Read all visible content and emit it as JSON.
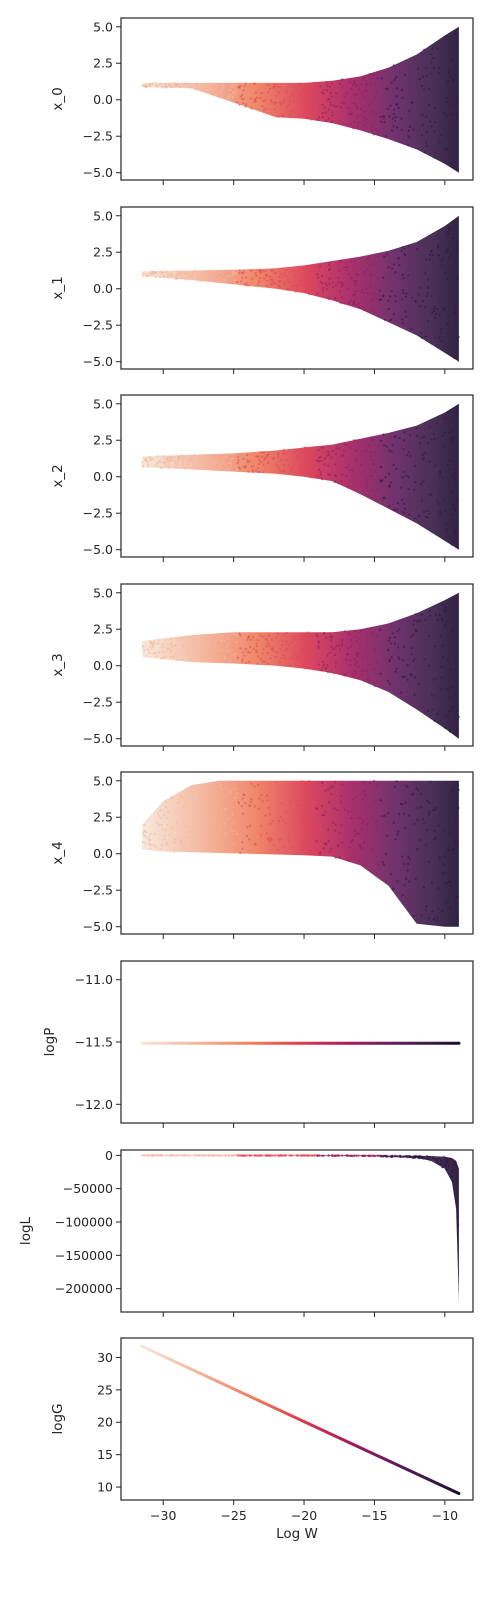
{
  "figure": {
    "shared_xlabel": "Log W",
    "colors": {
      "colormap_dark": "#1a0b2e",
      "colormap_mid": "#b8286a",
      "colormap_light": "#f6e6d6",
      "axes_edge": "#262626",
      "background": "#ffffff"
    }
  },
  "chart_data": [
    {
      "type": "scatter",
      "ylabel": "x_0",
      "xlim": [
        -33,
        -8
      ],
      "ylim": [
        -5.5,
        5.6
      ],
      "xticks": [
        -30,
        -25,
        -20,
        -15,
        -10
      ],
      "yticks": [
        5.0,
        2.5,
        0.0,
        -2.5,
        -5.0
      ],
      "ytick_labels": [
        "5.0",
        "2.5",
        "0.0",
        "−2.5",
        "−5.0"
      ],
      "show_xtick_labels": false,
      "envelope": {
        "x": [
          -31.5,
          -28,
          -25,
          -22,
          -20,
          -18,
          -16,
          -14,
          -12,
          -10,
          -9
        ],
        "upper": [
          1.15,
          1.15,
          1.15,
          1.15,
          1.15,
          1.3,
          1.6,
          2.2,
          3.1,
          4.4,
          5.0
        ],
        "lower": [
          0.85,
          0.8,
          -0.2,
          -1.2,
          -1.3,
          -1.6,
          -2.1,
          -2.7,
          -3.4,
          -4.4,
          -5.0
        ]
      }
    },
    {
      "type": "scatter",
      "ylabel": "x_1",
      "xlim": [
        -33,
        -8
      ],
      "ylim": [
        -5.5,
        5.6
      ],
      "xticks": [
        -30,
        -25,
        -20,
        -15,
        -10
      ],
      "yticks": [
        5.0,
        2.5,
        0.0,
        -2.5,
        -5.0
      ],
      "ytick_labels": [
        "5.0",
        "2.5",
        "0.0",
        "−2.5",
        "−5.0"
      ],
      "show_xtick_labels": false,
      "envelope": {
        "x": [
          -31.5,
          -28,
          -25,
          -22,
          -20,
          -18,
          -16,
          -14,
          -12,
          -10,
          -9
        ],
        "upper": [
          1.2,
          1.25,
          1.3,
          1.4,
          1.6,
          1.9,
          2.2,
          2.6,
          3.2,
          4.3,
          5.0
        ],
        "lower": [
          0.85,
          0.6,
          0.3,
          0.0,
          -0.3,
          -0.8,
          -1.4,
          -2.3,
          -3.2,
          -4.4,
          -5.0
        ]
      }
    },
    {
      "type": "scatter",
      "ylabel": "x_2",
      "xlim": [
        -33,
        -8
      ],
      "ylim": [
        -5.5,
        5.6
      ],
      "xticks": [
        -30,
        -25,
        -20,
        -15,
        -10
      ],
      "yticks": [
        5.0,
        2.5,
        0.0,
        -2.5,
        -5.0
      ],
      "ytick_labels": [
        "5.0",
        "2.5",
        "0.0",
        "−2.5",
        "−5.0"
      ],
      "show_xtick_labels": false,
      "envelope": {
        "x": [
          -31.5,
          -28,
          -25,
          -22,
          -20,
          -18,
          -16,
          -14,
          -12,
          -10,
          -9
        ],
        "upper": [
          1.4,
          1.5,
          1.6,
          1.8,
          2.0,
          2.2,
          2.6,
          3.0,
          3.5,
          4.4,
          5.0
        ],
        "lower": [
          0.65,
          0.5,
          0.35,
          0.2,
          0.0,
          -0.3,
          -1.2,
          -2.2,
          -3.2,
          -4.4,
          -5.0
        ]
      }
    },
    {
      "type": "scatter",
      "ylabel": "x_3",
      "xlim": [
        -33,
        -8
      ],
      "ylim": [
        -5.5,
        5.6
      ],
      "xticks": [
        -30,
        -25,
        -20,
        -15,
        -10
      ],
      "yticks": [
        5.0,
        2.5,
        0.0,
        -2.5,
        -5.0
      ],
      "ytick_labels": [
        "5.0",
        "2.5",
        "0.0",
        "−2.5",
        "−5.0"
      ],
      "show_xtick_labels": false,
      "envelope": {
        "x": [
          -31.5,
          -28,
          -25,
          -22,
          -20,
          -18,
          -16,
          -14,
          -12,
          -10,
          -9
        ],
        "upper": [
          1.7,
          2.1,
          2.3,
          2.3,
          2.3,
          2.3,
          2.5,
          2.9,
          3.6,
          4.5,
          5.0
        ],
        "lower": [
          0.6,
          0.25,
          0.15,
          0.0,
          -0.2,
          -0.5,
          -1.0,
          -1.8,
          -3.0,
          -4.3,
          -5.0
        ]
      }
    },
    {
      "type": "scatter",
      "ylabel": "x_4",
      "xlim": [
        -33,
        -8
      ],
      "ylim": [
        -5.5,
        5.6
      ],
      "xticks": [
        -30,
        -25,
        -20,
        -15,
        -10
      ],
      "yticks": [
        5.0,
        2.5,
        0.0,
        -2.5,
        -5.0
      ],
      "ytick_labels": [
        "5.0",
        "2.5",
        "0.0",
        "−2.5",
        "−5.0"
      ],
      "show_xtick_labels": false,
      "envelope": {
        "x": [
          -31.5,
          -30,
          -28,
          -26,
          -24,
          -22,
          -20,
          -18,
          -16,
          -14,
          -12,
          -10,
          -9
        ],
        "upper": [
          2.0,
          3.6,
          4.7,
          5.0,
          5.0,
          5.0,
          5.0,
          5.0,
          5.0,
          5.0,
          5.0,
          5.0,
          5.0
        ],
        "lower": [
          0.3,
          0.15,
          0.1,
          0.05,
          0.0,
          -0.05,
          -0.1,
          -0.2,
          -0.8,
          -2.2,
          -4.8,
          -5.0,
          -5.0
        ]
      }
    },
    {
      "type": "scatter",
      "ylabel": "logP",
      "xlim": [
        -33,
        -8
      ],
      "ylim": [
        -12.15,
        -10.85
      ],
      "xticks": [
        -30,
        -25,
        -20,
        -15,
        -10
      ],
      "yticks": [
        -11.0,
        -11.5,
        -12.0
      ],
      "ytick_labels": [
        "−11.0",
        "−11.5",
        "−12.0"
      ],
      "show_xtick_labels": false,
      "line": {
        "x": [
          -31.5,
          -9
        ],
        "y": [
          -11.51,
          -11.51
        ]
      }
    },
    {
      "type": "scatter",
      "ylabel": "logL",
      "xlim": [
        -33,
        -8
      ],
      "ylim": [
        -235000,
        8000
      ],
      "xticks": [
        -30,
        -25,
        -20,
        -15,
        -10
      ],
      "yticks": [
        0,
        -50000,
        -100000,
        -150000,
        -200000
      ],
      "ytick_labels": [
        "0",
        "−50000",
        "−100000",
        "−150000",
        "−200000"
      ],
      "show_xtick_labels": false,
      "envelope": {
        "x": [
          -31.5,
          -20,
          -15,
          -12,
          -11,
          -10,
          -9.5,
          -9.2,
          -9
        ],
        "upper": [
          0,
          0,
          0,
          -500,
          -1000,
          -2000,
          -4000,
          -8000,
          -20000
        ],
        "lower": [
          -200,
          -500,
          -1500,
          -4000,
          -8000,
          -20000,
          -40000,
          -80000,
          -220000
        ]
      }
    },
    {
      "type": "scatter",
      "ylabel": "logG",
      "xlabel": "Log W",
      "xlim": [
        -33,
        -8
      ],
      "ylim": [
        8,
        33
      ],
      "xticks": [
        -30,
        -25,
        -20,
        -15,
        -10
      ],
      "xtick_labels": [
        "−30",
        "−25",
        "−20",
        "−15",
        "−10"
      ],
      "yticks": [
        30,
        25,
        20,
        15,
        10
      ],
      "ytick_labels": [
        "30",
        "25",
        "20",
        "15",
        "10"
      ],
      "show_xtick_labels": true,
      "line": {
        "x": [
          -31.5,
          -9
        ],
        "y": [
          31.7,
          9.0
        ]
      }
    }
  ]
}
